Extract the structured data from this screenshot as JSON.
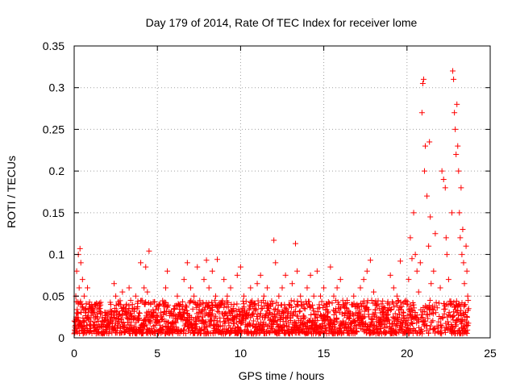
{
  "chart_data": {
    "type": "scatter",
    "title": "Day 179 of 2014, Rate Of TEC Index for receiver lome",
    "xlabel": "GPS time / hours",
    "ylabel": "ROTI / TECUs",
    "xlim": [
      0,
      25
    ],
    "ylim": [
      0,
      0.35
    ],
    "grid": true,
    "marker": "+",
    "color": "#ff0000",
    "x_ticks": [
      0,
      5,
      10,
      15,
      20,
      25
    ],
    "x_tick_labels": [
      "0",
      "5",
      "10",
      "15",
      "20",
      "25"
    ],
    "y_ticks": [
      0,
      0.05,
      0.1,
      0.15,
      0.2,
      0.25,
      0.3,
      0.35
    ],
    "y_tick_labels": [
      "0",
      "0.05",
      "0.1",
      "0.15",
      "0.2",
      "0.25",
      "0.3",
      "0.35"
    ],
    "series": [
      {
        "name": "ROTI",
        "points": [
          [
            0.05,
            0.02
          ],
          [
            0.1,
            0.05
          ],
          [
            0.15,
            0.08
          ],
          [
            0.2,
            0.03
          ],
          [
            0.25,
            0.1
          ],
          [
            0.3,
            0.06
          ],
          [
            0.35,
            0.107
          ],
          [
            0.4,
            0.09
          ],
          [
            0.45,
            0.04
          ],
          [
            0.5,
            0.07
          ],
          [
            0.55,
            0.02
          ],
          [
            0.6,
            0.05
          ],
          [
            0.7,
            0.03
          ],
          [
            0.8,
            0.06
          ],
          [
            0.9,
            0.04
          ],
          [
            1.0,
            0.02
          ],
          [
            1.1,
            0.035
          ],
          [
            1.2,
            0.015
          ],
          [
            1.4,
            0.025
          ],
          [
            1.6,
            0.03
          ],
          [
            1.8,
            0.02
          ],
          [
            2.0,
            0.03
          ],
          [
            2.2,
            0.04
          ],
          [
            2.4,
            0.065
          ],
          [
            2.5,
            0.05
          ],
          [
            2.7,
            0.04
          ],
          [
            2.9,
            0.055
          ],
          [
            3.1,
            0.03
          ],
          [
            3.3,
            0.06
          ],
          [
            3.5,
            0.04
          ],
          [
            3.7,
            0.05
          ],
          [
            3.9,
            0.03
          ],
          [
            4.0,
            0.09
          ],
          [
            4.2,
            0.06
          ],
          [
            4.3,
            0.085
          ],
          [
            4.4,
            0.055
          ],
          [
            4.5,
            0.104
          ],
          [
            4.6,
            0.04
          ],
          [
            4.8,
            0.03
          ],
          [
            5.0,
            0.02
          ],
          [
            5.2,
            0.03
          ],
          [
            5.5,
            0.06
          ],
          [
            5.6,
            0.08
          ],
          [
            5.8,
            0.03
          ],
          [
            6.0,
            0.035
          ],
          [
            6.2,
            0.05
          ],
          [
            6.4,
            0.04
          ],
          [
            6.6,
            0.07
          ],
          [
            6.8,
            0.09
          ],
          [
            7.0,
            0.06
          ],
          [
            7.2,
            0.05
          ],
          [
            7.4,
            0.085
          ],
          [
            7.6,
            0.04
          ],
          [
            7.8,
            0.07
          ],
          [
            7.95,
            0.093
          ],
          [
            8.1,
            0.06
          ],
          [
            8.3,
            0.08
          ],
          [
            8.5,
            0.05
          ],
          [
            8.6,
            0.094
          ],
          [
            8.8,
            0.04
          ],
          [
            9.0,
            0.07
          ],
          [
            9.2,
            0.05
          ],
          [
            9.4,
            0.06
          ],
          [
            9.6,
            0.04
          ],
          [
            9.8,
            0.075
          ],
          [
            10.0,
            0.085
          ],
          [
            10.2,
            0.05
          ],
          [
            10.4,
            0.03
          ],
          [
            10.6,
            0.06
          ],
          [
            10.8,
            0.04
          ],
          [
            11.0,
            0.065
          ],
          [
            11.2,
            0.075
          ],
          [
            11.4,
            0.05
          ],
          [
            11.6,
            0.06
          ],
          [
            11.8,
            0.04
          ],
          [
            12.0,
            0.117
          ],
          [
            12.1,
            0.09
          ],
          [
            12.3,
            0.05
          ],
          [
            12.5,
            0.06
          ],
          [
            12.7,
            0.075
          ],
          [
            12.9,
            0.04
          ],
          [
            13.1,
            0.065
          ],
          [
            13.3,
            0.113
          ],
          [
            13.4,
            0.08
          ],
          [
            13.6,
            0.05
          ],
          [
            13.8,
            0.04
          ],
          [
            14.0,
            0.06
          ],
          [
            14.2,
            0.075
          ],
          [
            14.4,
            0.05
          ],
          [
            14.6,
            0.08
          ],
          [
            14.8,
            0.05
          ],
          [
            15.0,
            0.06
          ],
          [
            15.2,
            0.04
          ],
          [
            15.4,
            0.085
          ],
          [
            15.6,
            0.05
          ],
          [
            15.8,
            0.06
          ],
          [
            16.0,
            0.07
          ],
          [
            16.2,
            0.04
          ],
          [
            16.4,
            0.045
          ],
          [
            16.6,
            0.03
          ],
          [
            16.8,
            0.05
          ],
          [
            17.0,
            0.04
          ],
          [
            17.2,
            0.06
          ],
          [
            17.4,
            0.07
          ],
          [
            17.6,
            0.08
          ],
          [
            17.8,
            0.093
          ],
          [
            18.0,
            0.055
          ],
          [
            18.2,
            0.04
          ],
          [
            18.4,
            0.03
          ],
          [
            18.6,
            0.035
          ],
          [
            18.8,
            0.02
          ],
          [
            19.0,
            0.075
          ],
          [
            19.2,
            0.06
          ],
          [
            19.4,
            0.05
          ],
          [
            19.6,
            0.092
          ],
          [
            19.8,
            0.03
          ],
          [
            20.0,
            0.04
          ],
          [
            20.1,
            0.07
          ],
          [
            20.2,
            0.12
          ],
          [
            20.3,
            0.095
          ],
          [
            20.4,
            0.15
          ],
          [
            20.5,
            0.1
          ],
          [
            20.6,
            0.08
          ],
          [
            20.7,
            0.055
          ],
          [
            20.8,
            0.09
          ],
          [
            20.9,
            0.27
          ],
          [
            20.95,
            0.305
          ],
          [
            21.0,
            0.31
          ],
          [
            21.05,
            0.2
          ],
          [
            21.1,
            0.23
          ],
          [
            21.2,
            0.17
          ],
          [
            21.3,
            0.11
          ],
          [
            21.35,
            0.235
          ],
          [
            21.4,
            0.145
          ],
          [
            21.45,
            0.065
          ],
          [
            21.5,
            0.03
          ],
          [
            21.6,
            0.08
          ],
          [
            21.7,
            0.125
          ],
          [
            22.0,
            0.06
          ],
          [
            22.1,
            0.2
          ],
          [
            22.2,
            0.19
          ],
          [
            22.3,
            0.18
          ],
          [
            22.35,
            0.12
          ],
          [
            22.4,
            0.1
          ],
          [
            22.5,
            0.07
          ],
          [
            22.6,
            0.04
          ],
          [
            22.7,
            0.15
          ],
          [
            22.75,
            0.32
          ],
          [
            22.8,
            0.31
          ],
          [
            22.85,
            0.27
          ],
          [
            22.9,
            0.25
          ],
          [
            22.95,
            0.22
          ],
          [
            23.0,
            0.28
          ],
          [
            23.05,
            0.23
          ],
          [
            23.1,
            0.2
          ],
          [
            23.15,
            0.15
          ],
          [
            23.2,
            0.12
          ],
          [
            23.25,
            0.18
          ],
          [
            23.3,
            0.1
          ],
          [
            23.35,
            0.13
          ],
          [
            23.4,
            0.09
          ],
          [
            23.45,
            0.065
          ],
          [
            23.5,
            0.04
          ],
          [
            23.55,
            0.11
          ],
          [
            23.6,
            0.08
          ],
          [
            23.65,
            0.05
          ],
          [
            23.7,
            0.035
          ]
        ]
      }
    ],
    "dense_band": {
      "description_note": "dense bulk of ROTI samples between x=0 and 23.7",
      "x_start": 0,
      "x_end": 23.7,
      "y_min": 0.005,
      "y_typical_max": 0.045,
      "step_hours": 0.012
    }
  }
}
